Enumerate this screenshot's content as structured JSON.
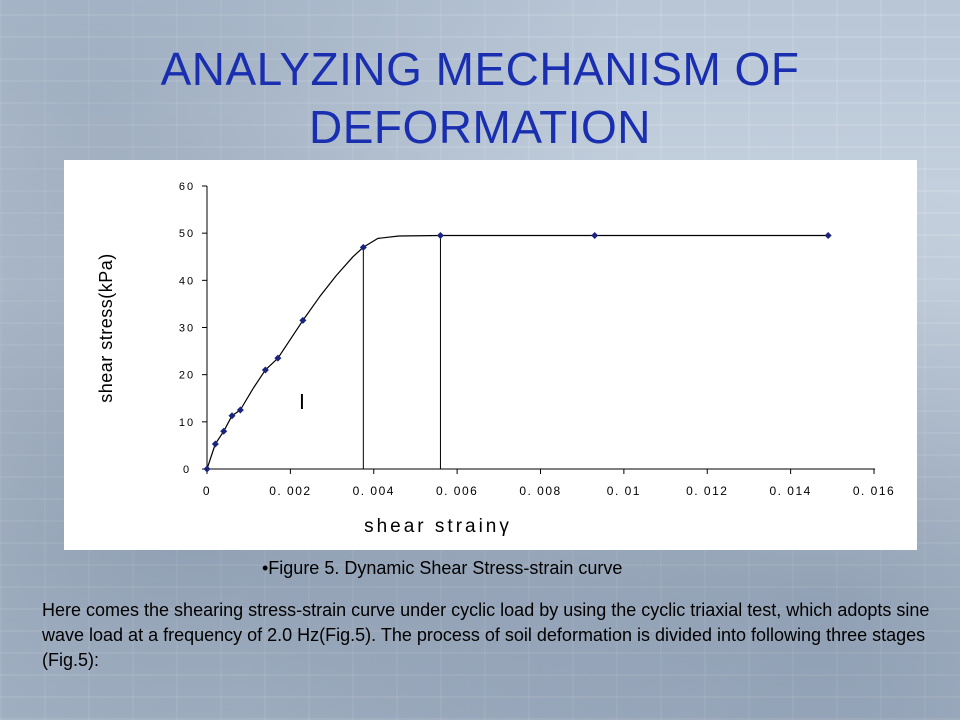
{
  "slide": {
    "title": "ANALYZING MECHANISM OF DEFORMATION",
    "caption": "•Figure 5.  Dynamic Shear Stress-strain curve",
    "body": "Here comes the shearing stress-strain curve under cyclic load by using the cyclic triaxial test, which adopts sine wave load at a frequency of 2.0 Hz(Fig.5). The process of soil deformation is divided into following three stages (Fig.5):"
  },
  "chart_data": {
    "type": "line",
    "title": "",
    "xlabel": "shear  strainγ",
    "ylabel": "shear  stress(kPa)",
    "xlim": [
      0,
      0.016
    ],
    "ylim": [
      0,
      60
    ],
    "x_ticks": [
      0,
      0.002,
      0.004,
      0.006,
      0.008,
      0.01,
      0.012,
      0.014,
      0.016
    ],
    "x_tick_labels": [
      "0",
      "0. 002",
      "0. 004",
      "0. 006",
      "0. 008",
      "0. 01",
      "0. 012",
      "0. 014",
      "0. 016"
    ],
    "y_ticks": [
      0,
      10,
      20,
      30,
      40,
      50,
      60
    ],
    "y_tick_labels": [
      "0",
      "10",
      "20",
      "30",
      "40",
      "50",
      "60"
    ],
    "grid": false,
    "marker_color": "#1a237e",
    "line_color": "#000000",
    "points": [
      {
        "x": 0.0,
        "y": 0.0
      },
      {
        "x": 0.0002,
        "y": 5.3
      },
      {
        "x": 0.0004,
        "y": 8.0
      },
      {
        "x": 0.0006,
        "y": 11.3
      },
      {
        "x": 0.0008,
        "y": 12.5
      },
      {
        "x": 0.0014,
        "y": 21.0
      },
      {
        "x": 0.0017,
        "y": 23.5
      },
      {
        "x": 0.0023,
        "y": 31.5
      },
      {
        "x": 0.00375,
        "y": 47.0
      },
      {
        "x": 0.0056,
        "y": 49.5
      },
      {
        "x": 0.0093,
        "y": 49.5
      },
      {
        "x": 0.0149,
        "y": 49.5
      }
    ],
    "curve": [
      [
        0.0,
        0.0
      ],
      [
        0.0002,
        5.3
      ],
      [
        0.0004,
        8.0
      ],
      [
        0.0006,
        11.3
      ],
      [
        0.0008,
        12.5
      ],
      [
        0.0011,
        17.0
      ],
      [
        0.0014,
        21.0
      ],
      [
        0.0017,
        23.5
      ],
      [
        0.002,
        27.5
      ],
      [
        0.0023,
        31.5
      ],
      [
        0.0027,
        36.5
      ],
      [
        0.0031,
        41.0
      ],
      [
        0.0035,
        45.0
      ],
      [
        0.00375,
        47.0
      ],
      [
        0.0041,
        48.9
      ],
      [
        0.0046,
        49.4
      ],
      [
        0.0056,
        49.5
      ],
      [
        0.007,
        49.5
      ],
      [
        0.0093,
        49.5
      ],
      [
        0.0149,
        49.5
      ]
    ],
    "vertical_lines": [
      {
        "x": 0.00375,
        "y_top": 47.0
      },
      {
        "x": 0.0056,
        "y_top": 49.5
      }
    ],
    "annotations": [
      "Ⅰ"
    ]
  }
}
